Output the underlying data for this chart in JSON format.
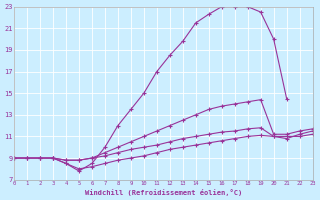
{
  "xlabel": "Windchill (Refroidissement éolien,°C)",
  "bg_color": "#cceeff",
  "line_color": "#993399",
  "xlim": [
    0,
    23
  ],
  "ylim": [
    7,
    23
  ],
  "xticks": [
    0,
    1,
    2,
    3,
    4,
    5,
    6,
    7,
    8,
    9,
    10,
    11,
    12,
    13,
    14,
    15,
    16,
    17,
    18,
    19,
    20,
    21,
    22,
    23
  ],
  "yticks": [
    7,
    9,
    11,
    13,
    15,
    17,
    19,
    21,
    23
  ],
  "curve1_x": [
    0,
    1,
    2,
    3,
    4,
    5,
    6,
    7,
    8,
    9,
    10,
    11,
    12,
    13,
    14,
    15,
    16,
    17,
    18,
    19,
    20,
    21
  ],
  "curve1_y": [
    9,
    9,
    9,
    9,
    8.5,
    7.8,
    8.5,
    10,
    12,
    13.5,
    15,
    17,
    18.5,
    19.8,
    21.5,
    22.3,
    23,
    23,
    23,
    22.5,
    20,
    14.5
  ],
  "curve2_x": [
    0,
    1,
    2,
    3,
    4,
    5,
    6,
    7,
    8,
    9,
    10,
    11,
    12,
    13,
    14,
    15,
    16,
    17,
    18,
    19,
    20,
    21,
    22,
    23
  ],
  "curve2_y": [
    9,
    9,
    9,
    9,
    8.8,
    8.8,
    9,
    9.5,
    10,
    10.5,
    11,
    11.5,
    12,
    12.5,
    13,
    13.5,
    13.8,
    14.0,
    14.2,
    14.4,
    11.2,
    11.2,
    11.5,
    11.7
  ],
  "curve3_x": [
    0,
    1,
    2,
    3,
    4,
    5,
    6,
    7,
    8,
    9,
    10,
    11,
    12,
    13,
    14,
    15,
    16,
    17,
    18,
    19,
    20,
    21,
    22,
    23
  ],
  "curve3_y": [
    9,
    9,
    9,
    9,
    8.8,
    8.8,
    9,
    9.2,
    9.5,
    9.8,
    10,
    10.2,
    10.5,
    10.8,
    11,
    11.2,
    11.4,
    11.5,
    11.7,
    11.8,
    11,
    11,
    11,
    11.2
  ],
  "curve4_x": [
    3,
    4,
    5,
    6,
    7,
    8,
    9,
    10,
    11,
    12,
    13,
    14,
    15,
    16,
    17,
    18,
    19,
    20,
    21,
    22,
    23
  ],
  "curve4_y": [
    9,
    8.5,
    8,
    8.2,
    8.5,
    8.8,
    9,
    9.2,
    9.5,
    9.8,
    10,
    10.2,
    10.4,
    10.6,
    10.8,
    11,
    11.1,
    11.0,
    10.8,
    11.2,
    11.5
  ]
}
